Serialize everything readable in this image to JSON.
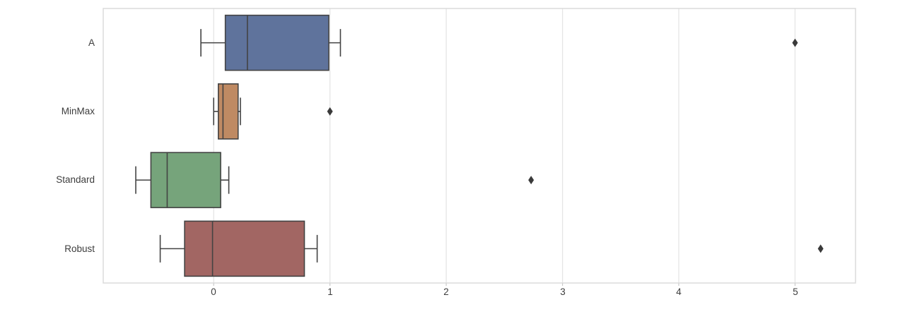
{
  "figure": {
    "background": "#ffffff"
  },
  "chart_data": {
    "type": "boxplot",
    "orientation": "horizontal",
    "title": "",
    "xlabel": "",
    "ylabel": "",
    "legend": "none",
    "grid": "vertical-gridlines-at-ticks",
    "categories": [
      "A",
      "MinMax",
      "Standard",
      "Robust"
    ],
    "x_ticks": [
      "0",
      "1",
      "2",
      "3",
      "4",
      "5"
    ],
    "x_tick_values": [
      0,
      1,
      2,
      3,
      4,
      5
    ],
    "xlim": [
      -0.95,
      5.52
    ],
    "series": [
      {
        "name": "A",
        "box_color": "#5f739c",
        "whisker_low": -0.11,
        "q1": 0.1,
        "median": 0.29,
        "q3": 0.99,
        "whisker_high": 1.09,
        "outliers": [
          5.0
        ]
      },
      {
        "name": "MinMax",
        "box_color": "#bf8a63",
        "whisker_low": 0.0,
        "q1": 0.04,
        "median": 0.08,
        "q3": 0.21,
        "whisker_high": 0.23,
        "outliers": [
          1.0
        ]
      },
      {
        "name": "Standard",
        "box_color": "#76a47b",
        "whisker_low": -0.67,
        "q1": -0.54,
        "median": -0.4,
        "q3": 0.06,
        "whisker_high": 0.13,
        "outliers": [
          2.73
        ]
      },
      {
        "name": "Robust",
        "box_color": "#a26663",
        "whisker_low": -0.46,
        "q1": -0.25,
        "median": -0.01,
        "q3": 0.78,
        "whisker_high": 0.89,
        "outliers": [
          5.22
        ]
      }
    ],
    "style": {
      "edge_color": "#434343",
      "median_color": "#434343",
      "outlier_color": "#3a3a3a",
      "grid_color": "#e5e5e5",
      "frame_color": "#d8d8d8",
      "tick_color": "#c9c9c9",
      "tick_text_color": "#3d3d3d"
    }
  }
}
